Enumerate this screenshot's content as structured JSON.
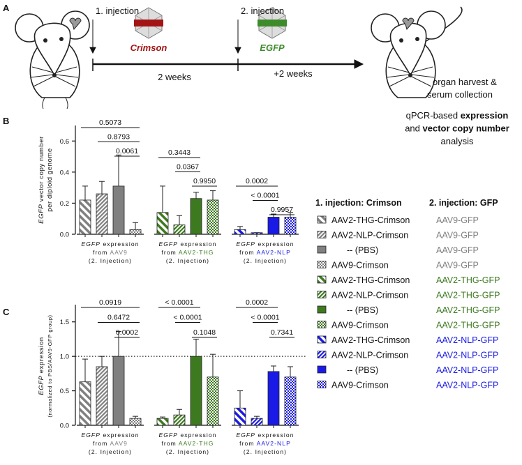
{
  "panel_labels": [
    "A",
    "B",
    "C"
  ],
  "timeline": {
    "injection1": "1. injection",
    "injection2": "2. injection",
    "virus1": "Crimson",
    "virus1_color": "#a31515",
    "virus2": "EGFP",
    "virus2_color": "#3d8b2a",
    "interval1": "2 weeks",
    "interval2": "+2 weeks",
    "endpoint": [
      "organ harvest &",
      "serum collection"
    ]
  },
  "analysis": [
    [
      "qPCR-based ",
      "expression"
    ],
    [
      "and ",
      "vector copy number"
    ],
    [
      "analysis"
    ]
  ],
  "chart_data": [
    {
      "type": "bar",
      "ylabel": [
        [
          "EGFP",
          " vector copy number"
        ],
        [
          "per diploid genome"
        ]
      ],
      "ylim": [
        0,
        0.7
      ],
      "yticks": [
        {
          "value": 0,
          "label": "0.0"
        },
        0.2,
        0.4,
        0.6
      ],
      "groups": [
        {
          "label": [
            [
              "EGFP",
              " expression"
            ],
            [
              "from ",
              "AAV9"
            ],
            [
              "(2. Injection)"
            ]
          ],
          "color": "#808080",
          "values": [
            0.22,
            0.26,
            0.31,
            0.03
          ],
          "errors": [
            0.09,
            0.08,
            0.2,
            0.045
          ],
          "pvalues": [
            "0.5073",
            "0.8793",
            "0.0061"
          ]
        },
        {
          "label": [
            [
              "EGFP",
              " expression"
            ],
            [
              "from ",
              "AAV2-THG"
            ],
            [
              "(2. Injection)"
            ]
          ],
          "color": "#3d7a1f",
          "values": [
            0.14,
            0.06,
            0.23,
            0.22
          ],
          "errors": [
            0.17,
            0.06,
            0.04,
            0.06
          ],
          "pvalues": [
            "0.3443",
            "0.0367",
            "0.9950"
          ]
        },
        {
          "label": [
            [
              "EGFP",
              " expression"
            ],
            [
              "from ",
              "AAV2-NLP"
            ],
            [
              "(2. Injection)"
            ]
          ],
          "color": "#1a1ae6",
          "values": [
            0.03,
            0.01,
            0.11,
            0.11
          ],
          "errors": [
            0.02,
            0,
            0.02,
            0.03
          ],
          "pvalues": [
            "0.0002",
            "< 0.0001",
            "0.9957"
          ]
        }
      ]
    },
    {
      "type": "bar",
      "ylabel": [
        [
          "EGFP",
          " expression"
        ],
        [
          "(normalized to PBS/AAV9-GFP group)"
        ]
      ],
      "ylim": [
        0,
        1.75
      ],
      "yticks": [
        {
          "value": 0,
          "label": "0.0"
        },
        0.5,
        {
          "value": 1,
          "label": "1.0"
        },
        1.5
      ],
      "reference_line": 1,
      "groups": [
        {
          "label": [
            [
              "EGFP",
              " expression"
            ],
            [
              "from ",
              "AAV9"
            ],
            [
              "(2. Injection)"
            ]
          ],
          "color": "#808080",
          "values": [
            0.63,
            0.85,
            1.0,
            0.1
          ],
          "errors": [
            0.33,
            0.15,
            0.36,
            0.03
          ],
          "pvalues": [
            "0.0919",
            "0.6472",
            "0.0002"
          ]
        },
        {
          "label": [
            [
              "EGFP",
              " expression"
            ],
            [
              "from ",
              "AAV2-THG"
            ],
            [
              "(2. Injection)"
            ]
          ],
          "color": "#3d7a1f",
          "values": [
            0.1,
            0.15,
            1.0,
            0.7
          ],
          "errors": [
            0.02,
            0.08,
            0.25,
            0.33
          ],
          "pvalues": [
            "< 0.0001",
            "< 0.0001",
            "0.1048"
          ]
        },
        {
          "label": [
            [
              "EGFP",
              " expression"
            ],
            [
              "from ",
              "AAV2-NLP"
            ],
            [
              "(2. Injection)"
            ]
          ],
          "color": "#1a1ae6",
          "values": [
            0.25,
            0.1,
            0.78,
            0.7
          ],
          "errors": [
            0.25,
            0.03,
            0.08,
            0.15
          ],
          "pvalues": [
            "0.0002",
            "< 0.0001",
            "0.7341"
          ]
        }
      ]
    }
  ],
  "legend": {
    "headers": [
      "1. injection: Crimson",
      "2. injection: GFP"
    ],
    "rows": [
      [
        "AAV2-THG-Crimson",
        "AAV9-GFP"
      ],
      [
        "AAV2-NLP-Crimson",
        "AAV9-GFP"
      ],
      [
        "-- (PBS)",
        "AAV9-GFP"
      ],
      [
        "AAV9-Crimson",
        "AAV9-GFP"
      ],
      [
        "AAV2-THG-Crimson",
        "AAV2-THG-GFP"
      ],
      [
        "AAV2-NLP-Crimson",
        "AAV2-THG-GFP"
      ],
      [
        "-- (PBS)",
        "AAV2-THG-GFP"
      ],
      [
        "AAV9-Crimson",
        "AAV2-THG-GFP"
      ],
      [
        "AAV2-THG-Crimson",
        "AAV2-NLP-GFP"
      ],
      [
        "AAV2-NLP-Crimson",
        "AAV2-NLP-GFP"
      ],
      [
        "-- (PBS)",
        "AAV2-NLP-GFP"
      ],
      [
        "AAV9-Crimson",
        "AAV2-NLP-GFP"
      ]
    ]
  }
}
